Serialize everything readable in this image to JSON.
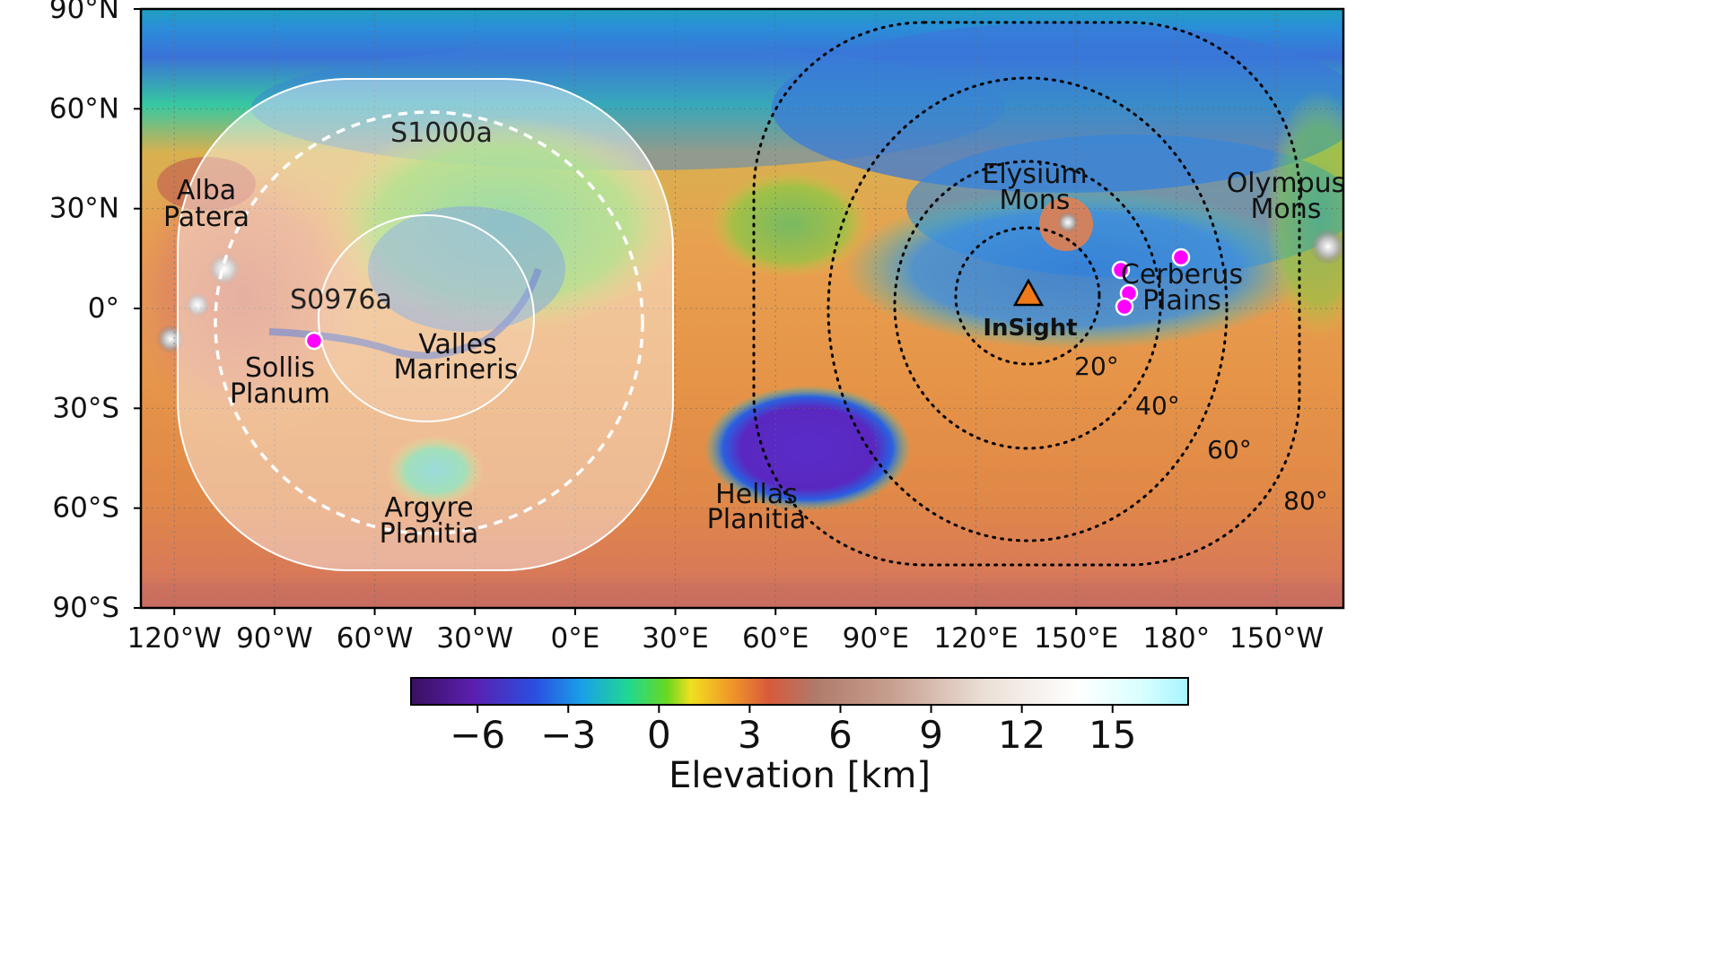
{
  "map": {
    "lat_ticks": [
      "90°N",
      "60°N",
      "30°N",
      "0°",
      "30°S",
      "60°S",
      "90°S"
    ],
    "lon_ticks": [
      "120°W",
      "90°W",
      "60°W",
      "30°W",
      "0°E",
      "30°E",
      "60°E",
      "90°E",
      "120°E",
      "150°E",
      "180°",
      "150°W"
    ],
    "lon_range_deg_east": [
      -130,
      230
    ],
    "lat_range_deg": [
      -90,
      90
    ],
    "grid": true,
    "features": {
      "alba_patera": [
        "Alba",
        "Patera"
      ],
      "sollis_planum": [
        "Sollis",
        "Planum"
      ],
      "valles_marineris": [
        "Valles",
        "Marineris"
      ],
      "argyre_planitia": [
        "Argyre",
        "Planitia"
      ],
      "hellas_planitia": [
        "Hellas",
        "Planitia"
      ],
      "elysium_mons": [
        "Elysium",
        "Mons"
      ],
      "olympus_mons": [
        "Olympus",
        "Mons"
      ],
      "cerberus_plains": [
        "Cerberus",
        "Plains"
      ]
    },
    "events": {
      "s1000a": "S1000a",
      "s0976a": "S0976a"
    },
    "lander": {
      "name": "InSight",
      "lon": 135.6,
      "lat": 4.5,
      "color": "#f07a1a"
    },
    "distance_rings": [
      {
        "deg": 20,
        "label": "20°"
      },
      {
        "deg": 40,
        "label": "40°"
      },
      {
        "deg": 60,
        "label": "60°"
      },
      {
        "deg": 80,
        "label": "80°"
      }
    ],
    "marsquake_color": "#ff00ff"
  },
  "colorbar": {
    "title": "Elevation [km]",
    "ticks": [
      "−6",
      "−3",
      "0",
      "3",
      "6",
      "9",
      "12",
      "15"
    ],
    "range_km": [
      -8.2,
      17.5
    ],
    "tick_values": [
      -6,
      -3,
      0,
      3,
      6,
      9,
      12,
      15
    ]
  }
}
